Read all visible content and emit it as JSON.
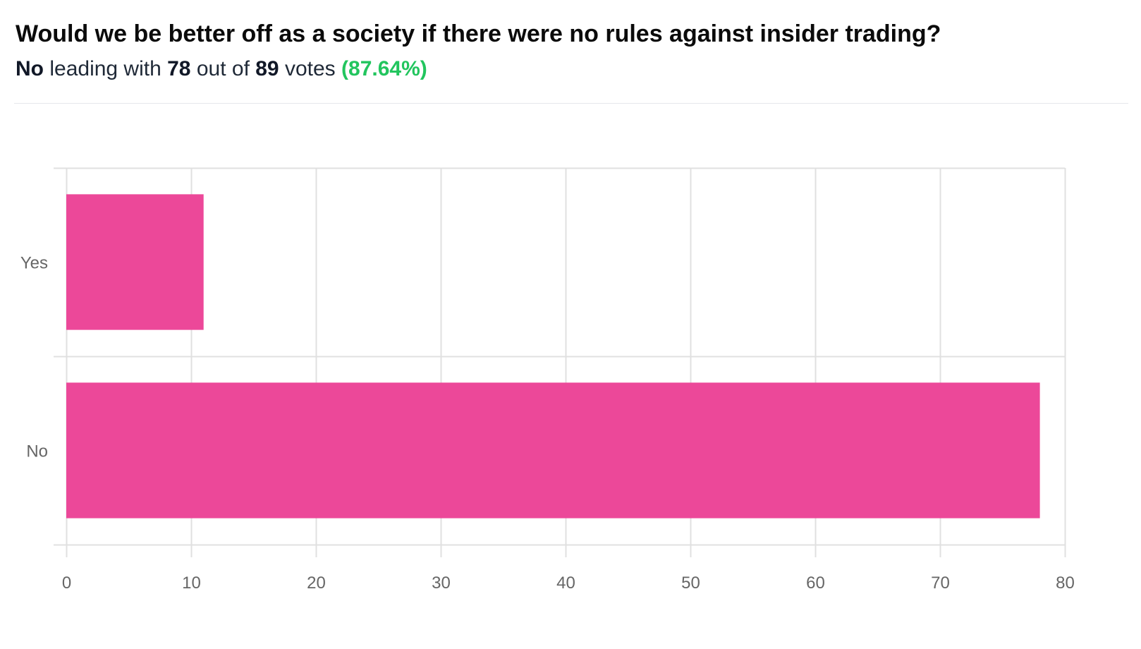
{
  "header": {
    "title": "Would we be better off as a society if there were no rules against insider trading?",
    "summary": {
      "leader": "No",
      "leading_with": "leading with",
      "count": "78",
      "out_of": "out of",
      "total": "89",
      "votes": "votes",
      "percent": "(87.64%)"
    }
  },
  "chart_data": {
    "type": "bar",
    "orientation": "horizontal",
    "categories": [
      "Yes",
      "No"
    ],
    "values": [
      11,
      78
    ],
    "xlim": [
      0,
      80
    ],
    "x_ticks": [
      "0",
      "10",
      "20",
      "30",
      "40",
      "50",
      "60",
      "70",
      "80"
    ],
    "grid": true,
    "bar_color": "#ec4899",
    "grid_color": "#e0e0e0",
    "title": "",
    "xlabel": "",
    "ylabel": ""
  }
}
